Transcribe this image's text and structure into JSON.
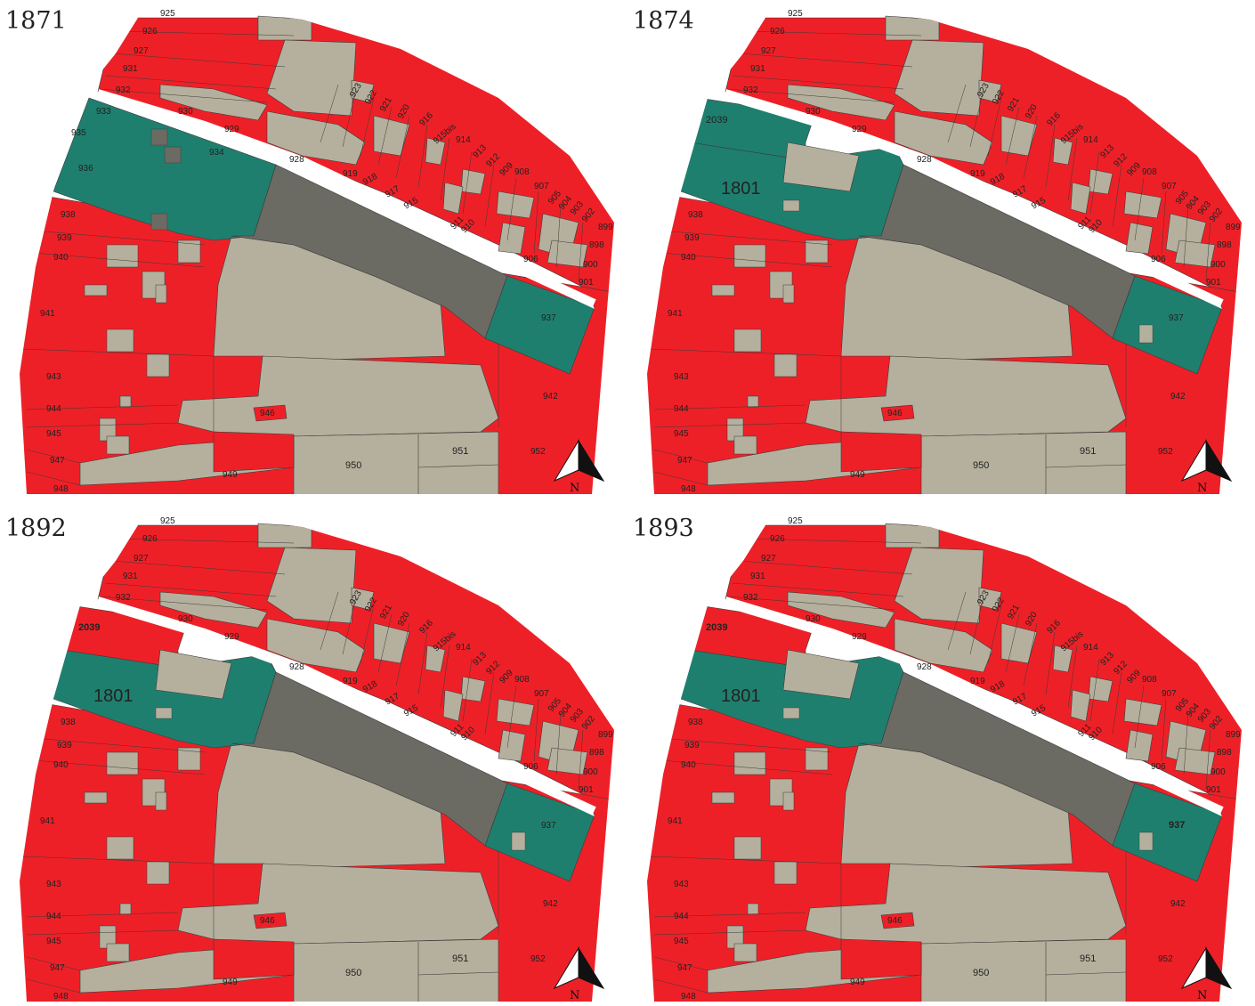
{
  "colors": {
    "red": "#ee2027",
    "beige": "#b5b09d",
    "dark_grey": "#6b6a63",
    "teal": "#1f7f6e",
    "street": "#ffffff",
    "line": "#3a3a3a"
  },
  "north_arrow_label": "N",
  "panels": [
    {
      "year": "1871",
      "variant": "1871"
    },
    {
      "year": "1874",
      "variant": "1874"
    },
    {
      "year": "1892",
      "variant": "1892"
    },
    {
      "year": "1893",
      "variant": "1893"
    }
  ],
  "parcel_labels": {
    "p925": "925",
    "p926": "926",
    "p927": "927",
    "p931": "931",
    "p932": "932",
    "p933": "933",
    "p935": "935",
    "p936": "936",
    "p934": "934",
    "p930": "930",
    "p929": "929",
    "p928": "928",
    "p919": "919",
    "p918": "918",
    "p917": "917",
    "p915": "915",
    "p916": "916",
    "p923": "923",
    "p922": "922",
    "p921": "921",
    "p920": "920",
    "p915bis": "915bis",
    "p914": "914",
    "p913": "913",
    "p912": "912",
    "p909": "909",
    "p908": "908",
    "p907": "907",
    "p905": "905",
    "p904": "904",
    "p903": "903",
    "p902": "902",
    "p899": "899",
    "p898": "898",
    "p900": "900",
    "p901": "901",
    "p906": "906",
    "p911": "911",
    "p910": "910",
    "p938": "938",
    "p939": "939",
    "p940": "940",
    "p941": "941",
    "p943": "943",
    "p944": "944",
    "p945": "945",
    "p946": "946",
    "p947": "947",
    "p948": "948",
    "p949": "949",
    "p950": "950",
    "p951": "951",
    "p952": "952",
    "p942": "942",
    "p937": "937",
    "p2039": "2039",
    "p1801": "1801"
  }
}
